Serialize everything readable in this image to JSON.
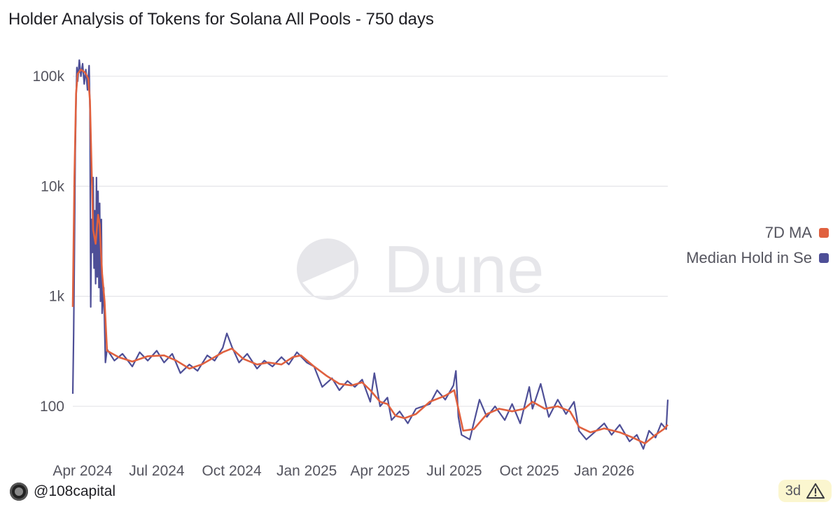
{
  "title": "Holder Analysis of Tokens for Solana All Pools - 750 days",
  "watermark": "Dune",
  "credit": "@108capital",
  "age_badge": "3d",
  "colors": {
    "ma": "#e0613f",
    "median": "#4e4f97",
    "grid": "#e6e6ea",
    "badge_bg": "#fbf6cf"
  },
  "icons": {
    "credit": "avatar-logo-icon",
    "badge": "warning-triangle-icon",
    "watermark": "dune-logo-icon"
  },
  "legend": [
    {
      "label": "7D MA",
      "color": "#e0613f"
    },
    {
      "label": "Median Hold in Se",
      "color": "#4e4f97"
    }
  ],
  "chart_data": {
    "type": "line",
    "title": "Holder Analysis of Tokens for Solana All Pools - 750 days",
    "x_range": [
      "2024-03-20",
      "2026-03-20"
    ],
    "y_scale": "log",
    "ylim": [
      38,
      150000
    ],
    "y_ticks": [
      {
        "value": 100,
        "label": "100"
      },
      {
        "value": 1000,
        "label": "1k"
      },
      {
        "value": 10000,
        "label": "10k"
      },
      {
        "value": 100000,
        "label": "100k"
      }
    ],
    "x_ticks": [
      {
        "date": "2024-04-01",
        "label": "Apr 2024"
      },
      {
        "date": "2024-07-01",
        "label": "Jul 2024"
      },
      {
        "date": "2024-10-01",
        "label": "Oct 2024"
      },
      {
        "date": "2025-01-01",
        "label": "Jan 2025"
      },
      {
        "date": "2025-04-01",
        "label": "Apr 2025"
      },
      {
        "date": "2025-07-01",
        "label": "Jul 2025"
      },
      {
        "date": "2025-10-01",
        "label": "Oct 2025"
      },
      {
        "date": "2026-01-01",
        "label": "Jan 2026"
      }
    ],
    "grid": true,
    "legend_position": "right",
    "series": [
      {
        "name": "7D MA",
        "points": [
          [
            "2024-03-20",
            800
          ],
          [
            "2024-03-22",
            12000
          ],
          [
            "2024-03-24",
            70000
          ],
          [
            "2024-03-26",
            105000
          ],
          [
            "2024-03-30",
            115000
          ],
          [
            "2024-04-04",
            108000
          ],
          [
            "2024-04-08",
            95000
          ],
          [
            "2024-04-10",
            60000
          ],
          [
            "2024-04-12",
            15000
          ],
          [
            "2024-04-14",
            4000
          ],
          [
            "2024-04-17",
            3000
          ],
          [
            "2024-04-20",
            5500
          ],
          [
            "2024-04-22",
            4500
          ],
          [
            "2024-04-25",
            1600
          ],
          [
            "2024-04-28",
            900
          ],
          [
            "2024-05-01",
            320
          ],
          [
            "2024-05-15",
            280
          ],
          [
            "2024-06-01",
            255
          ],
          [
            "2024-06-20",
            285
          ],
          [
            "2024-07-10",
            290
          ],
          [
            "2024-07-25",
            260
          ],
          [
            "2024-08-10",
            220
          ],
          [
            "2024-08-25",
            240
          ],
          [
            "2024-09-10",
            280
          ],
          [
            "2024-09-20",
            310
          ],
          [
            "2024-10-01",
            335
          ],
          [
            "2024-10-15",
            270
          ],
          [
            "2024-11-01",
            240
          ],
          [
            "2024-11-15",
            250
          ],
          [
            "2024-12-01",
            240
          ],
          [
            "2024-12-15",
            280
          ],
          [
            "2024-12-25",
            290
          ],
          [
            "2025-01-10",
            230
          ],
          [
            "2025-01-25",
            190
          ],
          [
            "2025-02-10",
            160
          ],
          [
            "2025-02-25",
            155
          ],
          [
            "2025-03-10",
            165
          ],
          [
            "2025-03-20",
            140
          ],
          [
            "2025-04-01",
            110
          ],
          [
            "2025-04-10",
            105
          ],
          [
            "2025-04-20",
            82
          ],
          [
            "2025-05-01",
            78
          ],
          [
            "2025-05-15",
            85
          ],
          [
            "2025-06-01",
            110
          ],
          [
            "2025-06-20",
            125
          ],
          [
            "2025-07-01",
            140
          ],
          [
            "2025-07-06",
            95
          ],
          [
            "2025-07-12",
            60
          ],
          [
            "2025-07-25",
            62
          ],
          [
            "2025-08-10",
            85
          ],
          [
            "2025-08-25",
            95
          ],
          [
            "2025-09-10",
            90
          ],
          [
            "2025-09-25",
            95
          ],
          [
            "2025-10-05",
            110
          ],
          [
            "2025-10-20",
            95
          ],
          [
            "2025-11-05",
            100
          ],
          [
            "2025-11-20",
            90
          ],
          [
            "2025-12-01",
            65
          ],
          [
            "2025-12-15",
            58
          ],
          [
            "2026-01-01",
            63
          ],
          [
            "2026-01-20",
            58
          ],
          [
            "2026-02-05",
            52
          ],
          [
            "2026-02-20",
            46
          ],
          [
            "2026-03-05",
            55
          ],
          [
            "2026-03-15",
            62
          ],
          [
            "2026-03-20",
            68
          ]
        ]
      },
      {
        "name": "Median Hold in Se",
        "points": [
          [
            "2024-03-20",
            130
          ],
          [
            "2024-03-21",
            450
          ],
          [
            "2024-03-22",
            2500
          ],
          [
            "2024-03-23",
            20000
          ],
          [
            "2024-03-24",
            60000
          ],
          [
            "2024-03-25",
            120000
          ],
          [
            "2024-03-26",
            90000
          ],
          [
            "2024-03-28",
            140000
          ],
          [
            "2024-03-30",
            100000
          ],
          [
            "2024-04-01",
            130000
          ],
          [
            "2024-04-03",
            85000
          ],
          [
            "2024-04-05",
            115000
          ],
          [
            "2024-04-07",
            75000
          ],
          [
            "2024-04-09",
            125000
          ],
          [
            "2024-04-10",
            50000
          ],
          [
            "2024-04-11",
            800
          ],
          [
            "2024-04-12",
            5000
          ],
          [
            "2024-04-13",
            2500
          ],
          [
            "2024-04-14",
            12000
          ],
          [
            "2024-04-15",
            1800
          ],
          [
            "2024-04-16",
            6000
          ],
          [
            "2024-04-17",
            1300
          ],
          [
            "2024-04-18",
            12000
          ],
          [
            "2024-04-19",
            1500
          ],
          [
            "2024-04-20",
            9000
          ],
          [
            "2024-04-21",
            1200
          ],
          [
            "2024-04-22",
            7000
          ],
          [
            "2024-04-23",
            900
          ],
          [
            "2024-04-24",
            5000
          ],
          [
            "2024-04-25",
            700
          ],
          [
            "2024-04-27",
            1200
          ],
          [
            "2024-04-29",
            250
          ],
          [
            "2024-05-01",
            330
          ],
          [
            "2024-05-10",
            260
          ],
          [
            "2024-05-20",
            300
          ],
          [
            "2024-06-01",
            230
          ],
          [
            "2024-06-10",
            310
          ],
          [
            "2024-06-20",
            260
          ],
          [
            "2024-07-01",
            320
          ],
          [
            "2024-07-10",
            250
          ],
          [
            "2024-07-20",
            300
          ],
          [
            "2024-07-30",
            200
          ],
          [
            "2024-08-10",
            240
          ],
          [
            "2024-08-20",
            210
          ],
          [
            "2024-09-01",
            290
          ],
          [
            "2024-09-10",
            260
          ],
          [
            "2024-09-20",
            340
          ],
          [
            "2024-09-25",
            460
          ],
          [
            "2024-10-01",
            350
          ],
          [
            "2024-10-10",
            250
          ],
          [
            "2024-10-20",
            300
          ],
          [
            "2024-11-01",
            220
          ],
          [
            "2024-11-10",
            260
          ],
          [
            "2024-11-20",
            230
          ],
          [
            "2024-12-01",
            280
          ],
          [
            "2024-12-10",
            240
          ],
          [
            "2024-12-20",
            310
          ],
          [
            "2025-01-01",
            250
          ],
          [
            "2025-01-10",
            230
          ],
          [
            "2025-01-20",
            150
          ],
          [
            "2025-02-01",
            180
          ],
          [
            "2025-02-10",
            140
          ],
          [
            "2025-02-20",
            170
          ],
          [
            "2025-03-01",
            150
          ],
          [
            "2025-03-10",
            175
          ],
          [
            "2025-03-20",
            110
          ],
          [
            "2025-03-25",
            200
          ],
          [
            "2025-04-01",
            100
          ],
          [
            "2025-04-10",
            120
          ],
          [
            "2025-04-15",
            75
          ],
          [
            "2025-04-25",
            90
          ],
          [
            "2025-05-05",
            70
          ],
          [
            "2025-05-15",
            95
          ],
          [
            "2025-06-01",
            105
          ],
          [
            "2025-06-10",
            140
          ],
          [
            "2025-06-20",
            115
          ],
          [
            "2025-06-30",
            155
          ],
          [
            "2025-07-03",
            210
          ],
          [
            "2025-07-06",
            80
          ],
          [
            "2025-07-10",
            55
          ],
          [
            "2025-07-20",
            50
          ],
          [
            "2025-08-01",
            115
          ],
          [
            "2025-08-10",
            80
          ],
          [
            "2025-08-20",
            100
          ],
          [
            "2025-09-01",
            75
          ],
          [
            "2025-09-10",
            105
          ],
          [
            "2025-09-20",
            70
          ],
          [
            "2025-10-01",
            150
          ],
          [
            "2025-10-05",
            95
          ],
          [
            "2025-10-15",
            160
          ],
          [
            "2025-10-25",
            80
          ],
          [
            "2025-11-05",
            115
          ],
          [
            "2025-11-15",
            85
          ],
          [
            "2025-11-25",
            110
          ],
          [
            "2025-12-01",
            60
          ],
          [
            "2025-12-10",
            50
          ],
          [
            "2025-12-20",
            58
          ],
          [
            "2026-01-01",
            70
          ],
          [
            "2026-01-10",
            55
          ],
          [
            "2026-01-20",
            68
          ],
          [
            "2026-02-01",
            48
          ],
          [
            "2026-02-10",
            55
          ],
          [
            "2026-02-18",
            41
          ],
          [
            "2026-02-25",
            60
          ],
          [
            "2026-03-05",
            52
          ],
          [
            "2026-03-12",
            70
          ],
          [
            "2026-03-18",
            62
          ],
          [
            "2026-03-20",
            115
          ]
        ]
      }
    ]
  }
}
